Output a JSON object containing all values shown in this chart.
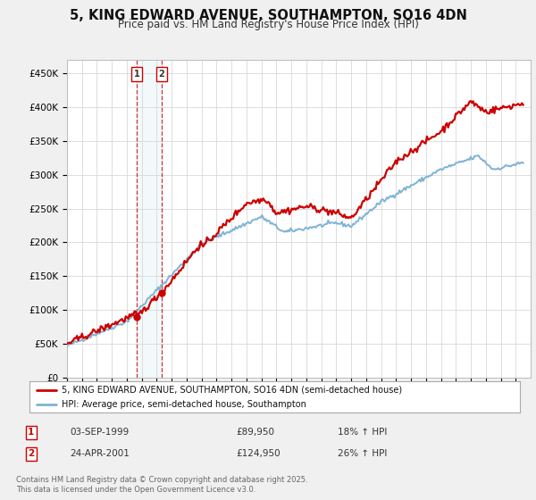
{
  "title": "5, KING EDWARD AVENUE, SOUTHAMPTON, SO16 4DN",
  "subtitle": "Price paid vs. HM Land Registry's House Price Index (HPI)",
  "ylim": [
    0,
    470000
  ],
  "yticks": [
    0,
    50000,
    100000,
    150000,
    200000,
    250000,
    300000,
    350000,
    400000,
    450000
  ],
  "ytick_labels": [
    "£0",
    "£50K",
    "£100K",
    "£150K",
    "£200K",
    "£250K",
    "£300K",
    "£350K",
    "£400K",
    "£450K"
  ],
  "price_paid_color": "#cc0000",
  "hpi_color": "#7fb3d3",
  "background_color": "#f0f0f0",
  "plot_bg_color": "#ffffff",
  "annotation1_date": "03-SEP-1999",
  "annotation1_price": "£89,950",
  "annotation1_hpi": "18% ↑ HPI",
  "annotation2_date": "24-APR-2001",
  "annotation2_price": "£124,950",
  "annotation2_hpi": "26% ↑ HPI",
  "legend_label1": "5, KING EDWARD AVENUE, SOUTHAMPTON, SO16 4DN (semi-detached house)",
  "legend_label2": "HPI: Average price, semi-detached house, Southampton",
  "footer": "Contains HM Land Registry data © Crown copyright and database right 2025.\nThis data is licensed under the Open Government Licence v3.0.",
  "marker1_x": 1999.67,
  "marker1_y": 89950,
  "marker2_x": 2001.32,
  "marker2_y": 124950,
  "xlim_start": 1995,
  "xlim_end": 2026
}
